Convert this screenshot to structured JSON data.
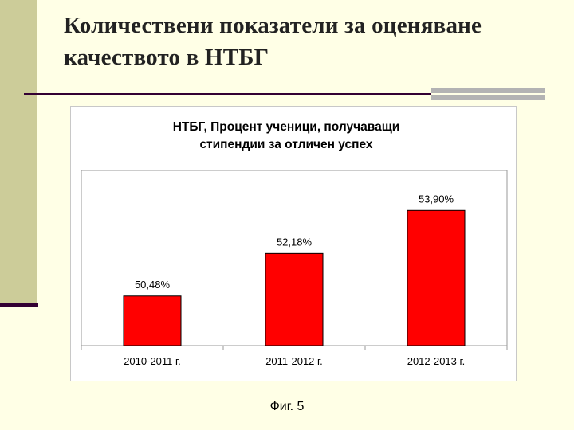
{
  "slide": {
    "title": "Количествени показатели за оценяване качеството в НТБГ",
    "caption": "Фиг. 5"
  },
  "colors": {
    "background": "#ffffe6",
    "left_bar": "#cccc99",
    "rule": "#330033",
    "bar_fill": "#ff0000",
    "bar_stroke": "#000000"
  },
  "chart_data": {
    "type": "bar",
    "title": [
      "НТБГ, Процент ученици, получаващи",
      "стипендии за отличен успех"
    ],
    "categories": [
      "2010-2011 г.",
      "2011-2012 г.",
      "2012-2013 г."
    ],
    "values": [
      50.48,
      52.18,
      53.9
    ],
    "data_labels": [
      "50,48%",
      "52,18%",
      "53,90%"
    ],
    "xlabel": "",
    "ylabel": "",
    "ylim": [
      48.5,
      55.5
    ],
    "grid": false,
    "legend": "none"
  }
}
